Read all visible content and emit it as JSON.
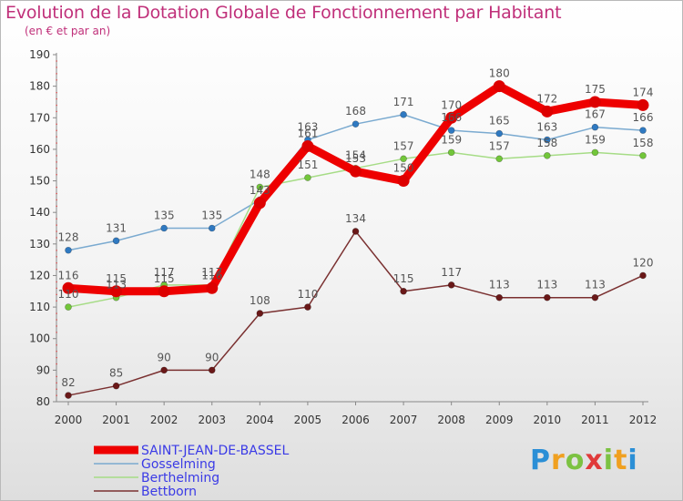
{
  "header": {
    "title": "Evolution de la Dotation Globale de Fonctionnement par Habitant",
    "subtitle": "(en € et par an)"
  },
  "chart_data": {
    "type": "line",
    "title": "Evolution de la Dotation Globale de Fonctionnement par Habitant",
    "subtitle": "(en € et par an)",
    "xlabel": "",
    "ylabel": "",
    "x": [
      2000,
      2001,
      2002,
      2003,
      2004,
      2005,
      2006,
      2007,
      2008,
      2009,
      2010,
      2011,
      2012
    ],
    "ylim": [
      80,
      190
    ],
    "yticks": [
      80,
      90,
      100,
      110,
      120,
      130,
      140,
      150,
      160,
      170,
      180,
      190
    ],
    "grid": false,
    "legend_position": "bottom-left",
    "series": [
      {
        "name": "Gosselming",
        "color": "#7aaad0",
        "marker": "#2f79c1",
        "values": [
          128,
          131,
          135,
          135,
          144,
          163,
          168,
          171,
          166,
          165,
          163,
          167,
          166
        ],
        "labels": [
          "128",
          "131",
          "135",
          "135",
          "",
          "163",
          "168",
          "171",
          "166",
          "165",
          "163",
          "167",
          "166"
        ]
      },
      {
        "name": "Berthelming",
        "color": "#a6dc86",
        "marker": "#72c63a",
        "values": [
          110,
          113,
          117,
          117,
          148,
          151,
          154,
          157,
          159,
          157,
          158,
          159,
          158
        ],
        "labels": [
          "110",
          "113",
          "117",
          "117",
          "148",
          "151",
          "154",
          "157",
          "159",
          "157",
          "158",
          "159",
          "158"
        ]
      },
      {
        "name": "Bettborn",
        "color": "#7a3030",
        "marker": "#6a1818",
        "values": [
          82,
          85,
          90,
          90,
          108,
          110,
          134,
          115,
          117,
          113,
          113,
          113,
          120
        ],
        "labels": [
          "82",
          "85",
          "90",
          "90",
          "108",
          "110",
          "134",
          "115",
          "117",
          "113",
          "113",
          "113",
          "120"
        ]
      },
      {
        "name": "SAINT-JEAN-DE-BASSEL",
        "color": "#ee0000",
        "marker": "#dd0000",
        "highlight": true,
        "values": [
          116,
          115,
          115,
          116,
          143,
          161,
          153,
          150,
          170,
          180,
          172,
          175,
          174
        ],
        "labels": [
          "116",
          "115",
          "115",
          "116",
          "143",
          "161",
          "153",
          "150",
          "170",
          "180",
          "172",
          "175",
          "174"
        ]
      }
    ],
    "legend": [
      "SAINT-JEAN-DE-BASSEL",
      "Gosselming",
      "Berthelming",
      "Bettborn"
    ]
  },
  "branding": {
    "logo_letters": [
      "P",
      "r",
      "o",
      "x",
      "i",
      "t",
      "i"
    ],
    "logo_colors": [
      "#2b8fd6",
      "#f0a020",
      "#7cc242",
      "#e03a3a",
      "#7cc242",
      "#f0a020",
      "#2b8fd6"
    ]
  }
}
